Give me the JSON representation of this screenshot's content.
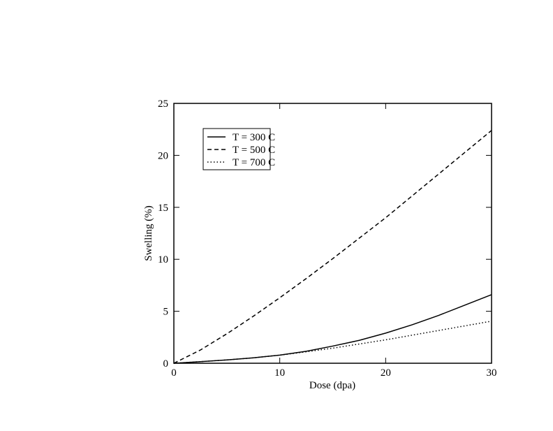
{
  "chart_data": {
    "type": "line",
    "x_label": "Dose (dpa)",
    "y_label": "Swelling (%)",
    "x": [
      0,
      2.5,
      5,
      7.5,
      10,
      12.5,
      15,
      17.5,
      20,
      22.5,
      25,
      27.5,
      30
    ],
    "series": [
      {
        "name": "T = 300 C",
        "color": "#000000",
        "dash": "solid",
        "values": [
          0,
          0.15,
          0.32,
          0.52,
          0.78,
          1.15,
          1.65,
          2.2,
          2.9,
          3.7,
          4.6,
          5.6,
          6.6
        ]
      },
      {
        "name": "T = 500 C",
        "color": "#000000",
        "dash": "dashed",
        "values": [
          0,
          1.27,
          2.83,
          4.52,
          6.3,
          8.15,
          10.06,
          12.03,
          14.0,
          16.1,
          18.2,
          20.3,
          22.4
        ]
      },
      {
        "name": "T = 700 C",
        "color": "#000000",
        "dash": "dotted",
        "values": [
          0,
          0.15,
          0.32,
          0.52,
          0.78,
          1.1,
          1.45,
          1.85,
          2.25,
          2.7,
          3.15,
          3.6,
          4.05
        ]
      }
    ],
    "xlim": [
      0,
      30
    ],
    "ylim": [
      0,
      25
    ],
    "xticks": [
      0,
      10,
      20,
      30
    ],
    "yticks": [
      0,
      5,
      10,
      15,
      20,
      25
    ],
    "legend": "upper left"
  }
}
